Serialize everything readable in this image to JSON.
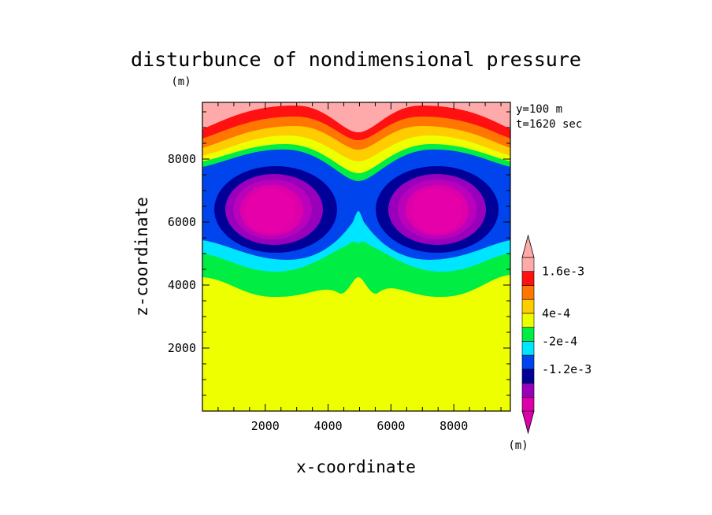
{
  "chart_data": {
    "type": "heatmap",
    "title": "disturbunce of nondimensional pressure",
    "title_units": "(m)",
    "xlabel": "x-coordinate",
    "ylabel": "z-coordinate",
    "x_units": "(m)",
    "xlim": [
      0,
      9800
    ],
    "ylim": [
      0,
      9800
    ],
    "x_ticks": [
      2000,
      4000,
      6000,
      8000
    ],
    "y_ticks": [
      2000,
      4000,
      6000,
      8000
    ],
    "annotations": [
      "y=100 m",
      "t=1620 sec"
    ],
    "colorbar": {
      "levels_bottom_to_top": [
        {
          "color": "#dd00aa"
        },
        {
          "color": "#9900bb"
        },
        {
          "color": "#000099",
          "label": "-1.2e-3"
        },
        {
          "color": "#0044ee"
        },
        {
          "color": "#00e5ff",
          "label": "-2e-4"
        },
        {
          "color": "#00ee44"
        },
        {
          "color": "#eeff00",
          "label": "4e-4"
        },
        {
          "color": "#ffcc00"
        },
        {
          "color": "#ff7700"
        },
        {
          "color": "#ff1111",
          "label": "1.6e-3"
        },
        {
          "color": "#ffaaaa"
        }
      ],
      "extend": "both"
    },
    "field_regions": [
      {
        "name": "upper-positive-band",
        "top_level": 10,
        "height_ticks": [
          2000,
          4000,
          6000,
          8000
        ]
      },
      {
        "name": "vortex-left-center",
        "x": 2400,
        "z": 6600,
        "level": 0
      },
      {
        "name": "vortex-right-center",
        "x": 7500,
        "z": 6600,
        "level": 0
      },
      {
        "name": "lower-uniform-region",
        "z_top": 4100,
        "level": 6
      }
    ]
  }
}
